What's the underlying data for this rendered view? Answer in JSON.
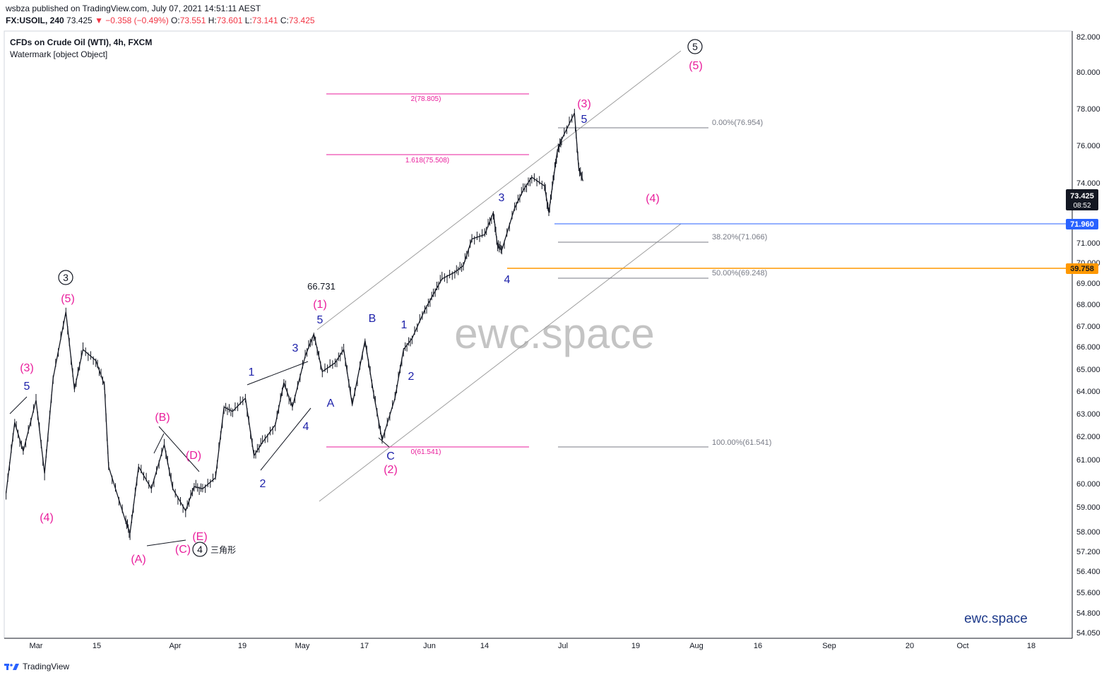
{
  "header": {
    "published": "wsbza published on TradingView.com, July 07, 2021 14:51:11 AEST",
    "symbol": "FX:USOIL, 240",
    "last": "73.425",
    "change": "▼ −0.358 (−0.49%)",
    "o_label": "O:",
    "o_value": "73.551",
    "h_label": "H:",
    "h_value": "73.601",
    "l_label": "L:",
    "l_value": "73.141",
    "c_label": "C:",
    "c_value": "73.425"
  },
  "chart_title": "CFDs on Crude Oil (WTI), 4h, FXCM",
  "watermark_line": "Watermark [object Object]",
  "big_watermark": "ewc.space",
  "brand_text": "ewc.space",
  "footer": {
    "brand": "TradingView"
  },
  "colors": {
    "magenta": "#e91e9c",
    "blue": "#1e22aa",
    "orange": "#ff9800",
    "price_blue": "#2962ff",
    "dark": "#131722"
  },
  "chart_data": {
    "type": "candlestick-elliott-wave",
    "x_ticks": [
      "Mar",
      "15",
      "Apr",
      "19",
      "May",
      "17",
      "Jun",
      "14",
      "Jul",
      "19",
      "Aug",
      "16",
      "Sep",
      "20",
      "Oct",
      "18"
    ],
    "y_ticks": [
      "82.000",
      "80.000",
      "78.000",
      "76.000",
      "74.000",
      "73.425",
      "71.000",
      "70.000",
      "69.000",
      "68.000",
      "67.000",
      "66.000",
      "65.000",
      "64.000",
      "63.000",
      "62.000",
      "61.000",
      "60.000",
      "59.000",
      "58.000",
      "57.200",
      "56.400",
      "55.600",
      "54.800",
      "54.050"
    ],
    "price_labels": [
      {
        "value": "73.425",
        "sub": "08:52",
        "color": "#131722"
      },
      {
        "value": "71.960",
        "color": "#2962ff"
      },
      {
        "value": "69.758",
        "color": "#ff9800"
      }
    ],
    "fib_levels": [
      {
        "text": "0.00%(76.954)"
      },
      {
        "text": "38.20%(71.066)"
      },
      {
        "text": "50.00%(69.248)"
      },
      {
        "text": "100.00%(61.541)"
      }
    ],
    "ext_levels": [
      {
        "text": "2(78.805)"
      },
      {
        "text": "1.618(75.508)"
      },
      {
        "text": "0(61.541)"
      }
    ],
    "price_annotation": "66.731",
    "triangle_label": "三角形",
    "wave_labels": [
      {
        "text": "5",
        "color": "blue"
      },
      {
        "text": "(3)",
        "color": "magenta"
      },
      {
        "text": "(4)",
        "color": "magenta"
      },
      {
        "text": "(5)",
        "color": "magenta"
      },
      {
        "text": "(A)",
        "color": "magenta"
      },
      {
        "text": "(B)",
        "color": "magenta"
      },
      {
        "text": "(C)",
        "color": "magenta"
      },
      {
        "text": "(D)",
        "color": "magenta"
      },
      {
        "text": "(E)",
        "color": "magenta"
      },
      {
        "text": "1",
        "color": "blue"
      },
      {
        "text": "2",
        "color": "blue"
      },
      {
        "text": "3",
        "color": "blue"
      },
      {
        "text": "4",
        "color": "blue"
      },
      {
        "text": "5",
        "color": "blue"
      },
      {
        "text": "(1)",
        "color": "magenta"
      },
      {
        "text": "A",
        "color": "blue"
      },
      {
        "text": "B",
        "color": "blue"
      },
      {
        "text": "C",
        "color": "blue"
      },
      {
        "text": "(2)",
        "color": "magenta"
      },
      {
        "text": "1",
        "color": "blue"
      },
      {
        "text": "2",
        "color": "blue"
      },
      {
        "text": "3",
        "color": "blue"
      },
      {
        "text": "4",
        "color": "blue"
      },
      {
        "text": "5",
        "color": "blue"
      },
      {
        "text": "(3)",
        "color": "magenta"
      },
      {
        "text": "(4)",
        "color": "magenta"
      },
      {
        "text": "(5)",
        "color": "magenta"
      }
    ],
    "circled_labels": [
      {
        "text": "3"
      },
      {
        "text": "4"
      },
      {
        "text": "5"
      }
    ],
    "price_path": [
      [
        "2021-02-22",
        59.3
      ],
      [
        "2021-02-24",
        62.5
      ],
      [
        "2021-02-26",
        61.2
      ],
      [
        "2021-03-01",
        63.5
      ],
      [
        "2021-03-03",
        60.2
      ],
      [
        "2021-03-05",
        64.5
      ],
      [
        "2021-03-08",
        67.5
      ],
      [
        "2021-03-10",
        64.0
      ],
      [
        "2021-03-12",
        65.8
      ],
      [
        "2021-03-15",
        65.3
      ],
      [
        "2021-03-17",
        64.2
      ],
      [
        "2021-03-18",
        60.5
      ],
      [
        "2021-03-22",
        58.0
      ],
      [
        "2021-03-23",
        57.5
      ],
      [
        "2021-03-25",
        60.5
      ],
      [
        "2021-03-28",
        59.5
      ],
      [
        "2021-03-31",
        61.5
      ],
      [
        "2021-04-02",
        59.5
      ],
      [
        "2021-04-05",
        58.5
      ],
      [
        "2021-04-07",
        59.6
      ],
      [
        "2021-04-09",
        59.5
      ],
      [
        "2021-04-12",
        60.0
      ],
      [
        "2021-04-14",
        63.2
      ],
      [
        "2021-04-16",
        63.0
      ],
      [
        "2021-04-19",
        63.6
      ],
      [
        "2021-04-21",
        61.0
      ],
      [
        "2021-04-23",
        61.6
      ],
      [
        "2021-04-26",
        62.4
      ],
      [
        "2021-04-28",
        64.3
      ],
      [
        "2021-04-30",
        63.2
      ],
      [
        "2021-05-03",
        65.5
      ],
      [
        "2021-05-05",
        66.5
      ],
      [
        "2021-05-07",
        64.8
      ],
      [
        "2021-05-10",
        65.2
      ],
      [
        "2021-05-12",
        65.8
      ],
      [
        "2021-05-14",
        63.3
      ],
      [
        "2021-05-17",
        66.2
      ],
      [
        "2021-05-19",
        63.8
      ],
      [
        "2021-05-21",
        61.7
      ],
      [
        "2021-05-24",
        63.6
      ],
      [
        "2021-05-26",
        65.8
      ],
      [
        "2021-05-28",
        66.3
      ],
      [
        "2021-05-31",
        67.6
      ],
      [
        "2021-06-02",
        68.3
      ],
      [
        "2021-06-04",
        69.0
      ],
      [
        "2021-06-07",
        69.3
      ],
      [
        "2021-06-09",
        69.6
      ],
      [
        "2021-06-11",
        70.8
      ],
      [
        "2021-06-14",
        71.0
      ],
      [
        "2021-06-16",
        72.0
      ],
      [
        "2021-06-17",
        70.5
      ],
      [
        "2021-06-18",
        70.3
      ],
      [
        "2021-06-21",
        72.2
      ],
      [
        "2021-06-23",
        73.0
      ],
      [
        "2021-06-25",
        73.6
      ],
      [
        "2021-06-28",
        73.2
      ],
      [
        "2021-06-29",
        72.0
      ],
      [
        "2021-06-30",
        73.4
      ],
      [
        "2021-07-01",
        74.8
      ],
      [
        "2021-07-02",
        75.3
      ],
      [
        "2021-07-05",
        76.5
      ],
      [
        "2021-07-06",
        74.0
      ],
      [
        "2021-07-07",
        73.425
      ]
    ]
  }
}
